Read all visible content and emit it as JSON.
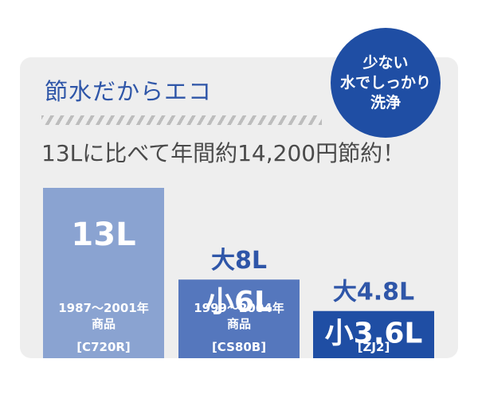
{
  "panel": {
    "title": "節水だからエコ",
    "subtitle": "13Lに比べて年間約14,200円節約！"
  },
  "badge": {
    "lines": [
      "少ない",
      "水でしっかり",
      "洗浄"
    ]
  },
  "colors": {
    "bar_1": "#8aa3d1",
    "bar_2": "#5577bd",
    "bar_3": "#1f4ea4",
    "accent": "#2f56a8",
    "panel_bg": "#eeeeee"
  },
  "chart_data": {
    "type": "bar",
    "categories": [
      "[C720R]",
      "[CS80B]",
      "[ZJ2]"
    ],
    "series": [
      {
        "values": [
          13,
          6,
          3.6
        ]
      }
    ],
    "large_flush": [
      null,
      8,
      4.8
    ],
    "value_labels": [
      "13L",
      "小6L",
      "小3.6L"
    ],
    "large_labels": [
      "",
      "大8L",
      "大4.8L"
    ],
    "period_labels": [
      "1987～2001年",
      "1999～2004年",
      ""
    ],
    "product_labels": [
      "商品",
      "商品",
      ""
    ],
    "model_labels": [
      "[C720R]",
      "[CS80B]",
      "[ZJ2]"
    ],
    "ylim": [
      0,
      13
    ],
    "grid": false,
    "title": "",
    "xlabel": "",
    "ylabel": ""
  }
}
